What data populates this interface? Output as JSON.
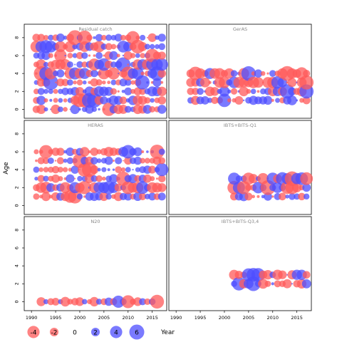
{
  "chart_data": {
    "type": "scatter",
    "subtype": "bubble-residual",
    "xlabel": "Year",
    "ylabel": "Age",
    "x_ticks": [
      1990,
      1995,
      2000,
      2005,
      2010,
      2015
    ],
    "y_ticks": [
      0,
      2,
      4,
      6,
      8
    ],
    "xlim": [
      1988.5,
      2018
    ],
    "ylim": [
      -1,
      9.5
    ],
    "colors": {
      "positive": "#4d4dff",
      "negative": "#ff5a5a"
    },
    "legend": {
      "placement": "bottom-left",
      "values": [
        -4,
        -2,
        0,
        2,
        4,
        6
      ]
    },
    "panels": [
      {
        "name": "Residual catch",
        "years": [
          1991,
          2017
        ],
        "ages": [
          0,
          1,
          2,
          3,
          4,
          5,
          6,
          7,
          8
        ],
        "seed": 11
      },
      {
        "name": "GerAS",
        "years": [
          1993,
          2017
        ],
        "ages": [
          1,
          2,
          3,
          4
        ],
        "seed": 23
      },
      {
        "name": "HERAS",
        "years": [
          1991,
          2017
        ],
        "ages": [
          1,
          2,
          3,
          4,
          5,
          6
        ],
        "seed": 37
      },
      {
        "name": "IBTS+BITS-Q1",
        "years": [
          2002,
          2017
        ],
        "ages": [
          1,
          2,
          3
        ],
        "seed": 41
      },
      {
        "name": "N20",
        "years": [
          1992,
          2016
        ],
        "ages": [
          0
        ],
        "seed": 53
      },
      {
        "name": "IBTS+BITS-Q3,4",
        "years": [
          2002,
          2017
        ],
        "ages": [
          2,
          3
        ],
        "seed": 67
      }
    ]
  }
}
